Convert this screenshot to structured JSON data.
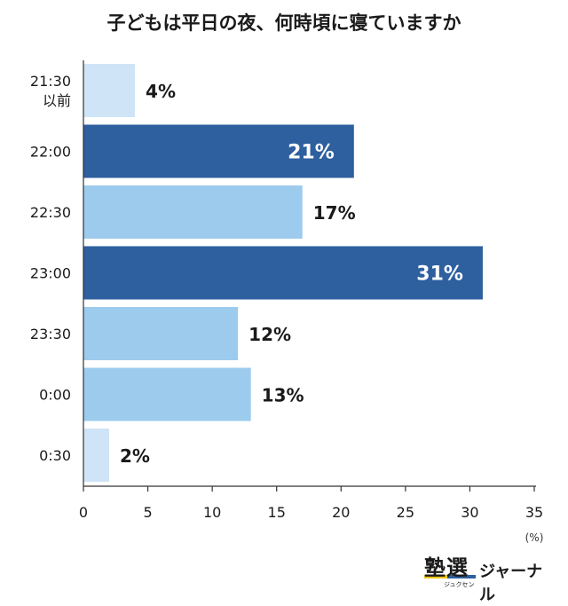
{
  "chart_data": {
    "type": "bar",
    "orientation": "horizontal",
    "title": "子どもは平日の夜、何時頃に寝ていますか",
    "categories": [
      [
        "21:30",
        "以前"
      ],
      [
        "22:00"
      ],
      [
        "22:30"
      ],
      [
        "23:00"
      ],
      [
        "23:30"
      ],
      [
        "0:00"
      ],
      [
        "0:30"
      ]
    ],
    "values": [
      4,
      21,
      17,
      31,
      12,
      13,
      2
    ],
    "data_labels": [
      "4%",
      "21%",
      "17%",
      "31%",
      "12%",
      "13%",
      "2%"
    ],
    "colors": [
      "#cfe4f6",
      "#2e5f9f",
      "#9ccbee",
      "#2e5f9f",
      "#9ccbee",
      "#9ccbee",
      "#cfe4f6"
    ],
    "label_inside": [
      false,
      true,
      false,
      true,
      false,
      false,
      false
    ],
    "x_ticks": [
      "0",
      "5",
      "10",
      "15",
      "20",
      "25",
      "30",
      "35"
    ],
    "xlim": [
      0,
      35
    ],
    "x_unit": "(%)",
    "grid": false,
    "legend": "none"
  },
  "logo": {
    "main": "塾選",
    "sub": "ジャーナル",
    "reading": "ジュクセン"
  }
}
